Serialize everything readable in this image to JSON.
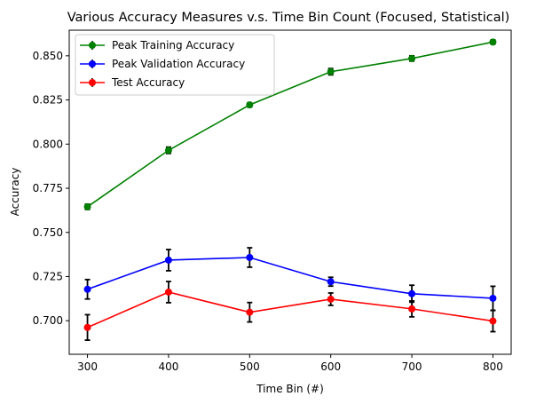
{
  "chart_data": {
    "type": "line",
    "title": "Various Accuracy Measures v.s. Time Bin Count (Focused, Statistical)",
    "xlabel": "Time Bin (#)",
    "ylabel": "Accuracy",
    "x": [
      300,
      400,
      500,
      600,
      700,
      800
    ],
    "xlim": [
      277.5,
      822.5
    ],
    "ylim": [
      0.681,
      0.8645
    ],
    "xticks": [
      300,
      400,
      500,
      600,
      700,
      800
    ],
    "yticks": [
      0.7,
      0.725,
      0.75,
      0.775,
      0.8,
      0.825,
      0.85
    ],
    "ytick_labels": [
      "0.700",
      "0.725",
      "0.750",
      "0.775",
      "0.800",
      "0.825",
      "0.850"
    ],
    "grid": false,
    "legend": "top-left",
    "series": [
      {
        "name": "Peak Training Accuracy",
        "color": "#008000",
        "values": [
          0.7645,
          0.7965,
          0.8222,
          0.841,
          0.8485,
          0.8578
        ],
        "errors": [
          0.0015,
          0.0018,
          0.0012,
          0.0018,
          0.0015,
          0.0012
        ]
      },
      {
        "name": "Peak Validation Accuracy",
        "color": "#0000ff",
        "values": [
          0.7178,
          0.7343,
          0.7358,
          0.7221,
          0.7153,
          0.7127
        ],
        "errors": [
          0.0055,
          0.006,
          0.0055,
          0.0025,
          0.0048,
          0.0068
        ]
      },
      {
        "name": "Test Accuracy",
        "color": "#ff0000",
        "values": [
          0.6962,
          0.7162,
          0.7048,
          0.7122,
          0.7067,
          0.6998
        ],
        "errors": [
          0.0072,
          0.006,
          0.0055,
          0.0035,
          0.0045,
          0.006
        ]
      }
    ]
  }
}
